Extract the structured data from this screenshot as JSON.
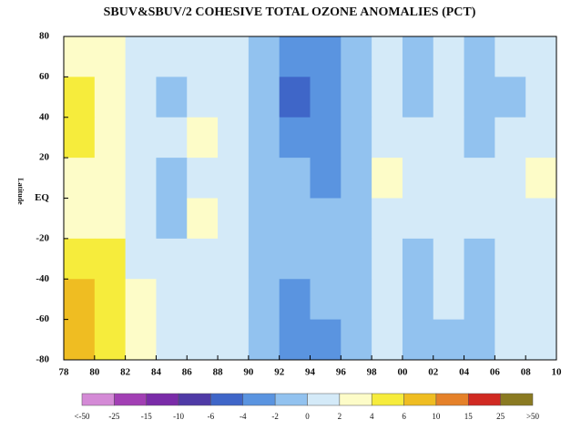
{
  "chart_data": {
    "type": "heatmap",
    "title": "SBUV&SBUV/2 COHESIVE TOTAL OZONE ANOMALIES (PCT)",
    "y_label": "Latitude",
    "x_bins": [
      1978,
      1980,
      1982,
      1984,
      1986,
      1988,
      1990,
      1992,
      1994,
      1996,
      1998,
      2000,
      2002,
      2004,
      2006,
      2008,
      2010
    ],
    "y_bins": [
      80,
      60,
      40,
      20,
      0,
      -20,
      -40,
      -60,
      -80
    ],
    "z": [
      [
        3,
        2,
        1,
        0,
        1,
        0,
        -1,
        -4,
        -3,
        -1,
        0,
        -1,
        0,
        -1,
        0,
        1
      ],
      [
        4,
        3,
        1,
        -1,
        1,
        0,
        -2,
        -5,
        -4,
        -1,
        1,
        -1,
        0,
        -2,
        -1,
        1
      ],
      [
        4,
        3,
        1,
        0,
        2,
        1,
        -1,
        -3,
        -3,
        -1,
        1,
        0,
        1,
        -1,
        0,
        1
      ],
      [
        3,
        2,
        0,
        -1,
        1,
        0,
        -1,
        -2,
        -3,
        -1,
        2,
        0,
        1,
        0,
        1,
        2
      ],
      [
        3,
        2,
        0,
        -1,
        2,
        1,
        -1,
        -2,
        -2,
        -1,
        1,
        0,
        1,
        0,
        1,
        1
      ],
      [
        5,
        4,
        1,
        0,
        1,
        1,
        -1,
        -2,
        -2,
        -1,
        0,
        -1,
        0,
        -1,
        0,
        1
      ],
      [
        7,
        5,
        2,
        1,
        1,
        1,
        -1,
        -3,
        -2,
        -1,
        0,
        -1,
        0,
        -1,
        0,
        0
      ],
      [
        6,
        4,
        2,
        1,
        1,
        0,
        -2,
        -4,
        -3,
        -1,
        0,
        -1,
        -1,
        -1,
        0,
        0
      ]
    ],
    "xlim": [
      1978,
      2010
    ],
    "xticks": [
      {
        "value": 1978,
        "label": "78"
      },
      {
        "value": 1980,
        "label": "80"
      },
      {
        "value": 1982,
        "label": "82"
      },
      {
        "value": 1984,
        "label": "84"
      },
      {
        "value": 1986,
        "label": "86"
      },
      {
        "value": 1988,
        "label": "88"
      },
      {
        "value": 1990,
        "label": "90"
      },
      {
        "value": 1992,
        "label": "92"
      },
      {
        "value": 1994,
        "label": "94"
      },
      {
        "value": 1996,
        "label": "96"
      },
      {
        "value": 1998,
        "label": "98"
      },
      {
        "value": 2000,
        "label": "00"
      },
      {
        "value": 2002,
        "label": "02"
      },
      {
        "value": 2004,
        "label": "04"
      },
      {
        "value": 2006,
        "label": "06"
      },
      {
        "value": 2008,
        "label": "08"
      },
      {
        "value": 2010,
        "label": "10"
      }
    ],
    "ylim": [
      -80,
      80
    ],
    "yticks": [
      -80,
      -60,
      -40,
      -20,
      {
        "value": 0,
        "label": "EQ"
      },
      20,
      40,
      60,
      80
    ],
    "colorbar": {
      "ticks": [
        {
          "value": -50,
          "label": "<-50"
        },
        -25,
        -15,
        -10,
        -6,
        -4,
        -2,
        0,
        2,
        4,
        6,
        10,
        15,
        25,
        {
          "value": 50,
          "label": ">50"
        }
      ],
      "colors": [
        "#d48ad6",
        "#a23fb4",
        "#7a2ca8",
        "#4f3aa6",
        "#3f66c8",
        "#5a94e0",
        "#92c2ef",
        "#d4eaf8",
        "#fdfcc8",
        "#f6ec3c",
        "#efbd22",
        "#e5812a",
        "#d02a22",
        "#8a7a22"
      ]
    }
  }
}
